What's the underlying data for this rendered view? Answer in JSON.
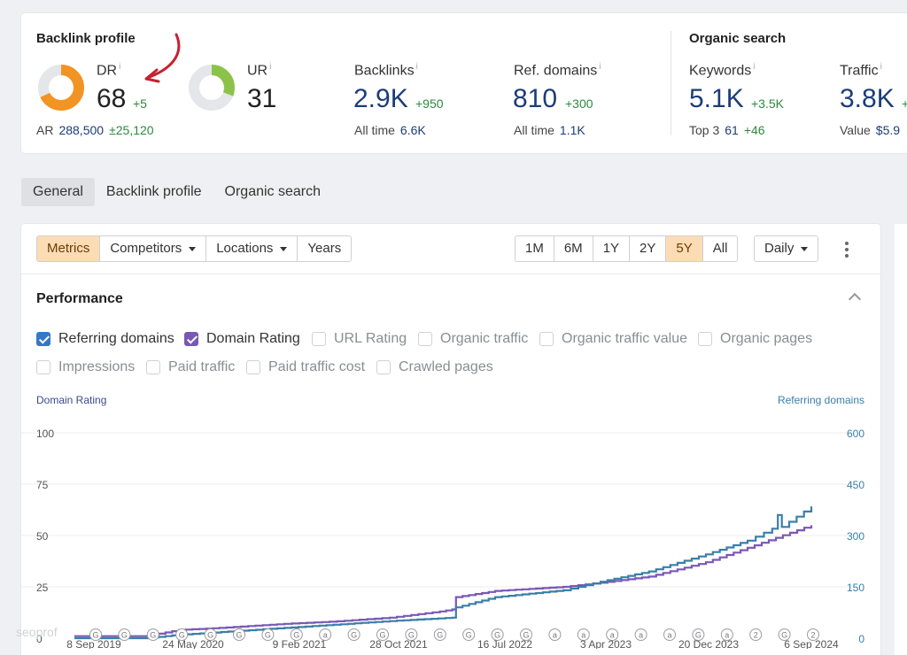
{
  "summary": {
    "backlink_title": "Backlink profile",
    "organic_title": "Organic search",
    "dr": {
      "label": "DR",
      "info": "i",
      "value": "68",
      "delta": "+5",
      "gauge_fraction": 0.68,
      "color": "#f29423"
    },
    "ar": {
      "label": "AR",
      "value": "288,500",
      "delta": "±25,120"
    },
    "ur": {
      "label": "UR",
      "info": "i",
      "value": "31",
      "gauge_fraction": 0.31,
      "color": "#8bc34a"
    },
    "backlinks": {
      "label": "Backlinks",
      "info": "i",
      "value": "2.9K",
      "delta": "+950",
      "sub_label": "All time",
      "sub_value": "6.6K"
    },
    "ref_domains": {
      "label": "Ref. domains",
      "info": "i",
      "value": "810",
      "delta": "+300",
      "sub_label": "All time",
      "sub_value": "1.1K"
    },
    "keywords": {
      "label": "Keywords",
      "info": "i",
      "value": "5.1K",
      "delta": "+3.5K",
      "sub_label": "Top 3",
      "sub_value": "61",
      "sub_delta": "+46"
    },
    "traffic": {
      "label": "Traffic",
      "info": "i",
      "value": "3.8K",
      "delta": "+",
      "sub_label": "Value",
      "sub_value": "$5.9"
    }
  },
  "tabs": [
    "General",
    "Backlink profile",
    "Organic search"
  ],
  "active_tab": 0,
  "toolbar": {
    "metrics": "Metrics",
    "competitors": "Competitors",
    "locations": "Locations",
    "years": "Years",
    "ranges": [
      "1M",
      "6M",
      "1Y",
      "2Y",
      "5Y",
      "All"
    ],
    "active_range": "5Y",
    "interval": "Daily"
  },
  "performance": {
    "title": "Performance",
    "checkboxes": [
      {
        "label": "Referring domains",
        "checked": true,
        "color": "#3478c9"
      },
      {
        "label": "Domain Rating",
        "checked": true,
        "color": "#7a58b5"
      },
      {
        "label": "URL Rating",
        "checked": false
      },
      {
        "label": "Organic traffic",
        "checked": false
      },
      {
        "label": "Organic traffic value",
        "checked": false
      },
      {
        "label": "Organic pages",
        "checked": false
      },
      {
        "label": "Impressions",
        "checked": false
      },
      {
        "label": "Paid traffic",
        "checked": false
      },
      {
        "label": "Paid traffic cost",
        "checked": false
      },
      {
        "label": "Crawled pages",
        "checked": false
      }
    ]
  },
  "chart_data": {
    "type": "line",
    "left_axis_label": "Domain Rating",
    "right_axis_label": "Referring domains",
    "x_ticks": [
      "8 Sep 2019",
      "24 May 2020",
      "9 Feb 2021",
      "28 Oct 2021",
      "16 Jul 2022",
      "3 Apr 2023",
      "20 Dec 2023",
      "6 Sep 2024"
    ],
    "y_left_ticks": [
      "0",
      "25",
      "50",
      "75",
      "100"
    ],
    "y_right_ticks": [
      "0",
      "150",
      "300",
      "450",
      "600"
    ],
    "ylim_left": [
      0,
      100
    ],
    "ylim_right": [
      0,
      600
    ],
    "x_range": [
      "2019-09-08",
      "2024-09-06"
    ],
    "grid": true,
    "series": [
      {
        "name": "Domain Rating",
        "axis": "left",
        "color": "#7a58b5",
        "points": [
          [
            "2019-09-08",
            1
          ],
          [
            "2020-03-01",
            1
          ],
          [
            "2020-05-24",
            4
          ],
          [
            "2020-09-01",
            5
          ],
          [
            "2021-02-09",
            7
          ],
          [
            "2021-06-01",
            8
          ],
          [
            "2021-10-28",
            10
          ],
          [
            "2022-03-01",
            13
          ],
          [
            "2022-04-01",
            14
          ],
          [
            "2022-04-10",
            20
          ],
          [
            "2022-07-16",
            23
          ],
          [
            "2023-01-01",
            25
          ],
          [
            "2023-04-03",
            27
          ],
          [
            "2023-08-01",
            30
          ],
          [
            "2023-12-20",
            37
          ],
          [
            "2024-04-01",
            44
          ],
          [
            "2024-09-06",
            55
          ]
        ]
      },
      {
        "name": "Referring domains",
        "axis": "right",
        "color": "#3a7fa8",
        "points": [
          [
            "2019-09-08",
            0
          ],
          [
            "2020-03-01",
            0
          ],
          [
            "2020-05-24",
            10
          ],
          [
            "2021-02-09",
            30
          ],
          [
            "2021-10-28",
            50
          ],
          [
            "2022-04-01",
            60
          ],
          [
            "2022-04-10",
            90
          ],
          [
            "2022-07-16",
            120
          ],
          [
            "2023-01-01",
            140
          ],
          [
            "2023-04-03",
            165
          ],
          [
            "2023-08-01",
            195
          ],
          [
            "2023-12-20",
            245
          ],
          [
            "2024-04-01",
            285
          ],
          [
            "2024-06-01",
            320
          ],
          [
            "2024-06-15",
            360
          ],
          [
            "2024-06-25",
            325
          ],
          [
            "2024-09-06",
            385
          ]
        ]
      }
    ],
    "annotation_markers": [
      "G",
      "G",
      "G",
      "G",
      "G",
      "G",
      "G",
      "G",
      "a",
      "G",
      "G",
      "G",
      "G",
      "G",
      "G",
      "G",
      "a",
      "a",
      "a",
      "a",
      "a",
      "G",
      "a",
      "2",
      "G",
      "2"
    ]
  },
  "watermark": "seoprof"
}
